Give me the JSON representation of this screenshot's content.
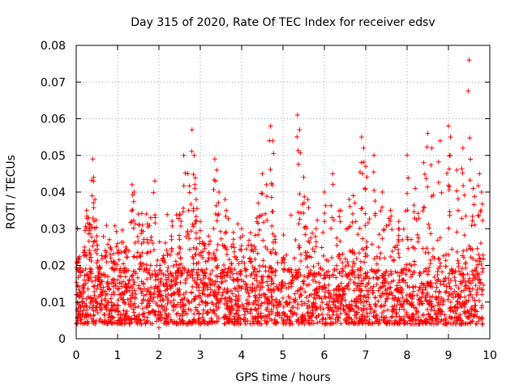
{
  "chart_data": {
    "type": "scatter",
    "title": "Day 315 of 2020, Rate Of TEC Index for receiver edsv",
    "xlabel": "GPS time / hours",
    "ylabel": "ROTI / TECUs",
    "xlim": [
      0,
      10
    ],
    "ylim": [
      0,
      0.08
    ],
    "grid": true,
    "marker": "+",
    "color": "#ff0000",
    "x_ticks": [
      0,
      1,
      2,
      3,
      4,
      5,
      6,
      7,
      8,
      9,
      10
    ],
    "x_tick_labels": [
      "0",
      "1",
      "2",
      "3",
      "4",
      "5",
      "6",
      "7",
      "8",
      "9",
      "10"
    ],
    "y_ticks": [
      0,
      0.01,
      0.02,
      0.03,
      0.04,
      0.05,
      0.06,
      0.07,
      0.08
    ],
    "y_tick_labels": [
      "0",
      "0.01",
      "0.02",
      "0.03",
      "0.04",
      "0.05",
      "0.06",
      "0.07",
      "0.08"
    ],
    "series": [
      {
        "name": "ROTI",
        "x_range": [
          0,
          9.85
        ],
        "points": [
          [
            0.0,
            0.012
          ],
          [
            0.05,
            0.022
          ],
          [
            0.1,
            0.018
          ],
          [
            0.15,
            0.009
          ],
          [
            0.2,
            0.025
          ],
          [
            0.25,
            0.035
          ],
          [
            0.3,
            0.033
          ],
          [
            0.35,
            0.031
          ],
          [
            0.4,
            0.049
          ],
          [
            0.42,
            0.044
          ],
          [
            0.45,
            0.038
          ],
          [
            0.5,
            0.028
          ],
          [
            0.55,
            0.019
          ],
          [
            0.6,
            0.012
          ],
          [
            0.7,
            0.024
          ],
          [
            0.8,
            0.027
          ],
          [
            0.9,
            0.021
          ],
          [
            1.0,
            0.026
          ],
          [
            1.1,
            0.004
          ],
          [
            1.2,
            0.025
          ],
          [
            1.35,
            0.042
          ],
          [
            1.4,
            0.04
          ],
          [
            1.5,
            0.034
          ],
          [
            1.6,
            0.031
          ],
          [
            1.7,
            0.034
          ],
          [
            1.8,
            0.033
          ],
          [
            1.9,
            0.043
          ],
          [
            2.0,
            0.003
          ],
          [
            2.1,
            0.022
          ],
          [
            2.3,
            0.028
          ],
          [
            2.5,
            0.034
          ],
          [
            2.6,
            0.05
          ],
          [
            2.7,
            0.045
          ],
          [
            2.8,
            0.057
          ],
          [
            2.85,
            0.05
          ],
          [
            2.9,
            0.038
          ],
          [
            3.0,
            0.032
          ],
          [
            3.1,
            0.026
          ],
          [
            3.2,
            0.028
          ],
          [
            3.35,
            0.049
          ],
          [
            3.4,
            0.046
          ],
          [
            3.45,
            0.04
          ],
          [
            3.6,
            0.038
          ],
          [
            3.8,
            0.029
          ],
          [
            4.0,
            0.03
          ],
          [
            4.2,
            0.022
          ],
          [
            4.4,
            0.037
          ],
          [
            4.5,
            0.045
          ],
          [
            4.6,
            0.042
          ],
          [
            4.7,
            0.058
          ],
          [
            4.75,
            0.054
          ],
          [
            4.8,
            0.028
          ],
          [
            5.0,
            0.022
          ],
          [
            5.2,
            0.015
          ],
          [
            5.35,
            0.061
          ],
          [
            5.4,
            0.057
          ],
          [
            5.5,
            0.044
          ],
          [
            5.6,
            0.038
          ],
          [
            5.8,
            0.03
          ],
          [
            6.0,
            0.04
          ],
          [
            6.2,
            0.045
          ],
          [
            6.4,
            0.035
          ],
          [
            6.6,
            0.038
          ],
          [
            6.7,
            0.039
          ],
          [
            6.9,
            0.055
          ],
          [
            6.95,
            0.052
          ],
          [
            7.0,
            0.047
          ],
          [
            7.2,
            0.05
          ],
          [
            7.4,
            0.04
          ],
          [
            7.6,
            0.035
          ],
          [
            7.8,
            0.032
          ],
          [
            8.0,
            0.05
          ],
          [
            8.2,
            0.041
          ],
          [
            8.4,
            0.048
          ],
          [
            8.5,
            0.056
          ],
          [
            8.6,
            0.052
          ],
          [
            8.8,
            0.054
          ],
          [
            9.0,
            0.058
          ],
          [
            9.05,
            0.055
          ],
          [
            9.2,
            0.046
          ],
          [
            9.35,
            0.052
          ],
          [
            9.5,
            0.076
          ],
          [
            9.6,
            0.041
          ],
          [
            9.75,
            0.045
          ],
          [
            9.8,
            0.04
          ]
        ],
        "dense_band": {
          "x_range": [
            0,
            9.85
          ],
          "y_min": 0.004,
          "y_typical": 0.012,
          "y_max": 0.025
        }
      }
    ]
  }
}
